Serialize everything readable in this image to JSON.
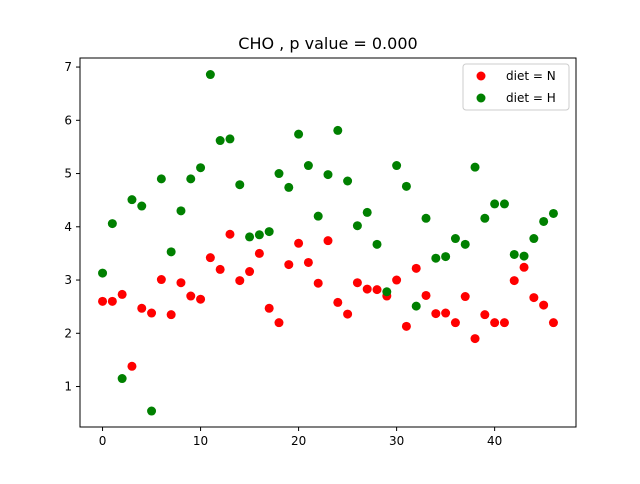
{
  "chart_data": {
    "type": "scatter",
    "title": "CHO , p value = 0.000",
    "xlabel": "",
    "ylabel": "",
    "xlim": [
      -2.3,
      48.3
    ],
    "ylim": [
      0.24,
      7.17
    ],
    "x_ticks": [
      0,
      10,
      20,
      30,
      40
    ],
    "x_tick_labels": [
      "0",
      "10",
      "20",
      "30",
      "40"
    ],
    "y_ticks": [
      1,
      2,
      3,
      4,
      5,
      6,
      7
    ],
    "y_tick_labels": [
      "1",
      "2",
      "3",
      "4",
      "5",
      "6",
      "7"
    ],
    "grid": false,
    "legend_position": "upper right",
    "series": [
      {
        "name": "diet = N",
        "color": "#ff0000",
        "x": [
          0,
          1,
          2,
          3,
          4,
          5,
          6,
          7,
          8,
          9,
          10,
          11,
          12,
          13,
          14,
          15,
          16,
          17,
          18,
          19,
          20,
          21,
          22,
          23,
          24,
          25,
          26,
          27,
          28,
          29,
          30,
          31,
          32,
          33,
          34,
          35,
          36,
          37,
          38,
          39,
          40,
          41,
          42,
          43,
          44,
          45,
          46
        ],
        "y": [
          2.6,
          2.6,
          2.73,
          1.38,
          2.47,
          2.38,
          3.01,
          2.35,
          2.95,
          2.7,
          2.64,
          3.42,
          3.2,
          3.86,
          2.99,
          3.16,
          3.5,
          2.47,
          2.2,
          3.29,
          3.69,
          3.33,
          2.94,
          3.74,
          2.58,
          2.36,
          2.95,
          2.83,
          2.82,
          2.7,
          3.0,
          2.13,
          3.22,
          2.71,
          2.37,
          2.38,
          2.2,
          2.69,
          1.9,
          2.35,
          2.2,
          2.2,
          2.99,
          3.24,
          2.67,
          2.53,
          2.2
        ]
      },
      {
        "name": "diet = H",
        "color": "#008000",
        "x": [
          0,
          1,
          2,
          3,
          4,
          5,
          6,
          7,
          8,
          9,
          10,
          11,
          12,
          13,
          14,
          15,
          16,
          17,
          18,
          19,
          20,
          21,
          22,
          23,
          24,
          25,
          26,
          27,
          28,
          29,
          30,
          31,
          32,
          33,
          34,
          35,
          36,
          37,
          38,
          39,
          40,
          41,
          42,
          43,
          44,
          45,
          46
        ],
        "y": [
          3.13,
          4.06,
          1.15,
          4.51,
          4.39,
          0.54,
          4.9,
          3.53,
          4.3,
          4.9,
          5.11,
          6.86,
          5.62,
          5.65,
          4.79,
          3.81,
          3.85,
          3.91,
          5.0,
          4.74,
          5.74,
          5.15,
          4.2,
          4.98,
          5.81,
          4.86,
          4.02,
          4.27,
          3.67,
          2.78,
          5.15,
          4.76,
          2.51,
          4.16,
          3.41,
          3.44,
          3.78,
          3.67,
          5.12,
          4.16,
          4.43,
          4.43,
          3.48,
          3.45,
          3.78,
          4.1,
          4.25
        ]
      }
    ]
  }
}
